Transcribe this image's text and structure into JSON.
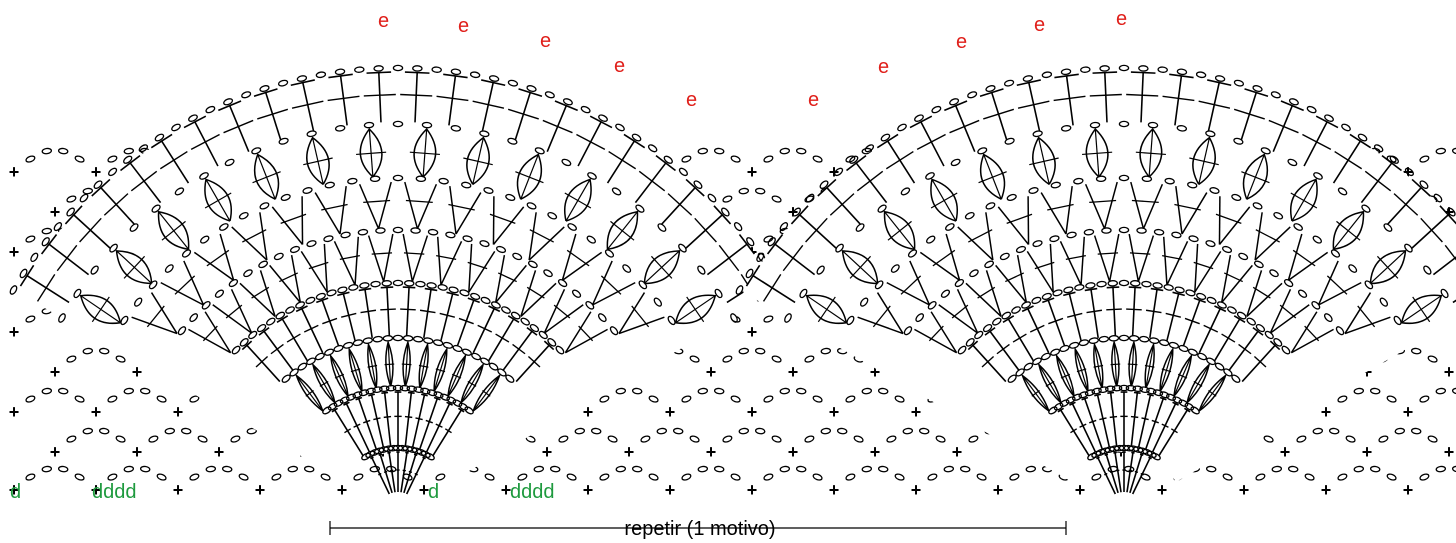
{
  "diagram": {
    "colors": {
      "ink": "#000000",
      "annotation_e": "#e0201b",
      "annotation_d": "#1e9a3e"
    },
    "annotations": {
      "upper_marker": "e",
      "lower_marker_single": "d",
      "lower_marker_group": "dddd"
    },
    "repeat_caption": "repetir (1 motivo)",
    "symbols": {
      "chain": "o",
      "single_crochet": "+",
      "slip": "•"
    },
    "motif_count": 2
  }
}
